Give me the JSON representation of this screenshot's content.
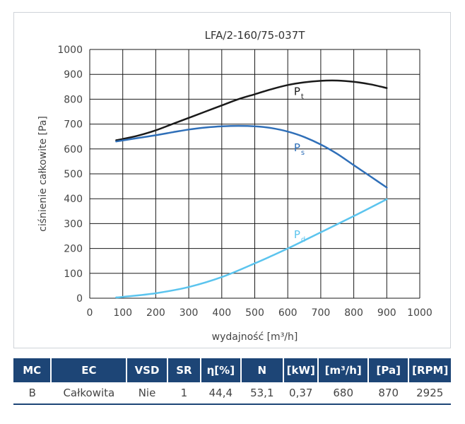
{
  "chart_data": {
    "type": "line",
    "title": "LFA/2-160/75-037T",
    "xlabel": "wydajność [m³/h]",
    "ylabel": "ciśnienie całkowite [Pa]",
    "xlim": [
      0,
      1000
    ],
    "ylim": [
      0,
      1000
    ],
    "x_ticks": [
      "0",
      "100",
      "200",
      "300",
      "400",
      "500",
      "600",
      "700",
      "800",
      "900",
      "1000"
    ],
    "y_ticks": [
      "0",
      "100",
      "200",
      "300",
      "400",
      "500",
      "600",
      "700",
      "800",
      "900",
      "1000"
    ],
    "grid": true,
    "series": [
      {
        "name": "Pt",
        "label_main": "P",
        "label_sub": "t",
        "color": "#1a1a1a",
        "label_pos": [
          640,
          825
        ],
        "points": [
          [
            80,
            635
          ],
          [
            100,
            640
          ],
          [
            150,
            655
          ],
          [
            200,
            675
          ],
          [
            250,
            700
          ],
          [
            300,
            725
          ],
          [
            350,
            750
          ],
          [
            400,
            775
          ],
          [
            450,
            800
          ],
          [
            500,
            820
          ],
          [
            550,
            840
          ],
          [
            600,
            857
          ],
          [
            650,
            868
          ],
          [
            700,
            874
          ],
          [
            750,
            875
          ],
          [
            800,
            870
          ],
          [
            850,
            860
          ],
          [
            900,
            845
          ]
        ]
      },
      {
        "name": "Ps",
        "label_main": "P",
        "label_sub": "s",
        "color": "#2f6fb8",
        "label_pos": [
          640,
          600
        ],
        "points": [
          [
            80,
            630
          ],
          [
            150,
            645
          ],
          [
            200,
            655
          ],
          [
            250,
            667
          ],
          [
            300,
            678
          ],
          [
            350,
            686
          ],
          [
            400,
            691
          ],
          [
            450,
            693
          ],
          [
            500,
            691
          ],
          [
            550,
            684
          ],
          [
            600,
            670
          ],
          [
            650,
            648
          ],
          [
            700,
            618
          ],
          [
            750,
            580
          ],
          [
            800,
            535
          ],
          [
            850,
            490
          ],
          [
            900,
            445
          ]
        ]
      },
      {
        "name": "Pd",
        "label_main": "P",
        "label_sub": "d",
        "color": "#5bc4ee",
        "label_pos": [
          640,
          250
        ],
        "points": [
          [
            80,
            3
          ],
          [
            100,
            5
          ],
          [
            200,
            20
          ],
          [
            300,
            45
          ],
          [
            400,
            85
          ],
          [
            500,
            140
          ],
          [
            600,
            200
          ],
          [
            700,
            265
          ],
          [
            800,
            330
          ],
          [
            900,
            398
          ]
        ]
      }
    ]
  },
  "table": {
    "headers": [
      "MC",
      "EC",
      "VSD",
      "SR",
      "η[%]",
      "N",
      "[kW]",
      "[m³/h]",
      "[Pa]",
      "[RPM]"
    ],
    "row": [
      "B",
      "Całkowita",
      "Nie",
      "1",
      "44,4",
      "53,1",
      "0,37",
      "680",
      "870",
      "2925"
    ]
  },
  "colors": {
    "header_bg": "#1d4576",
    "grid": "#1a1a1a",
    "frame": "#cfd3d8"
  }
}
